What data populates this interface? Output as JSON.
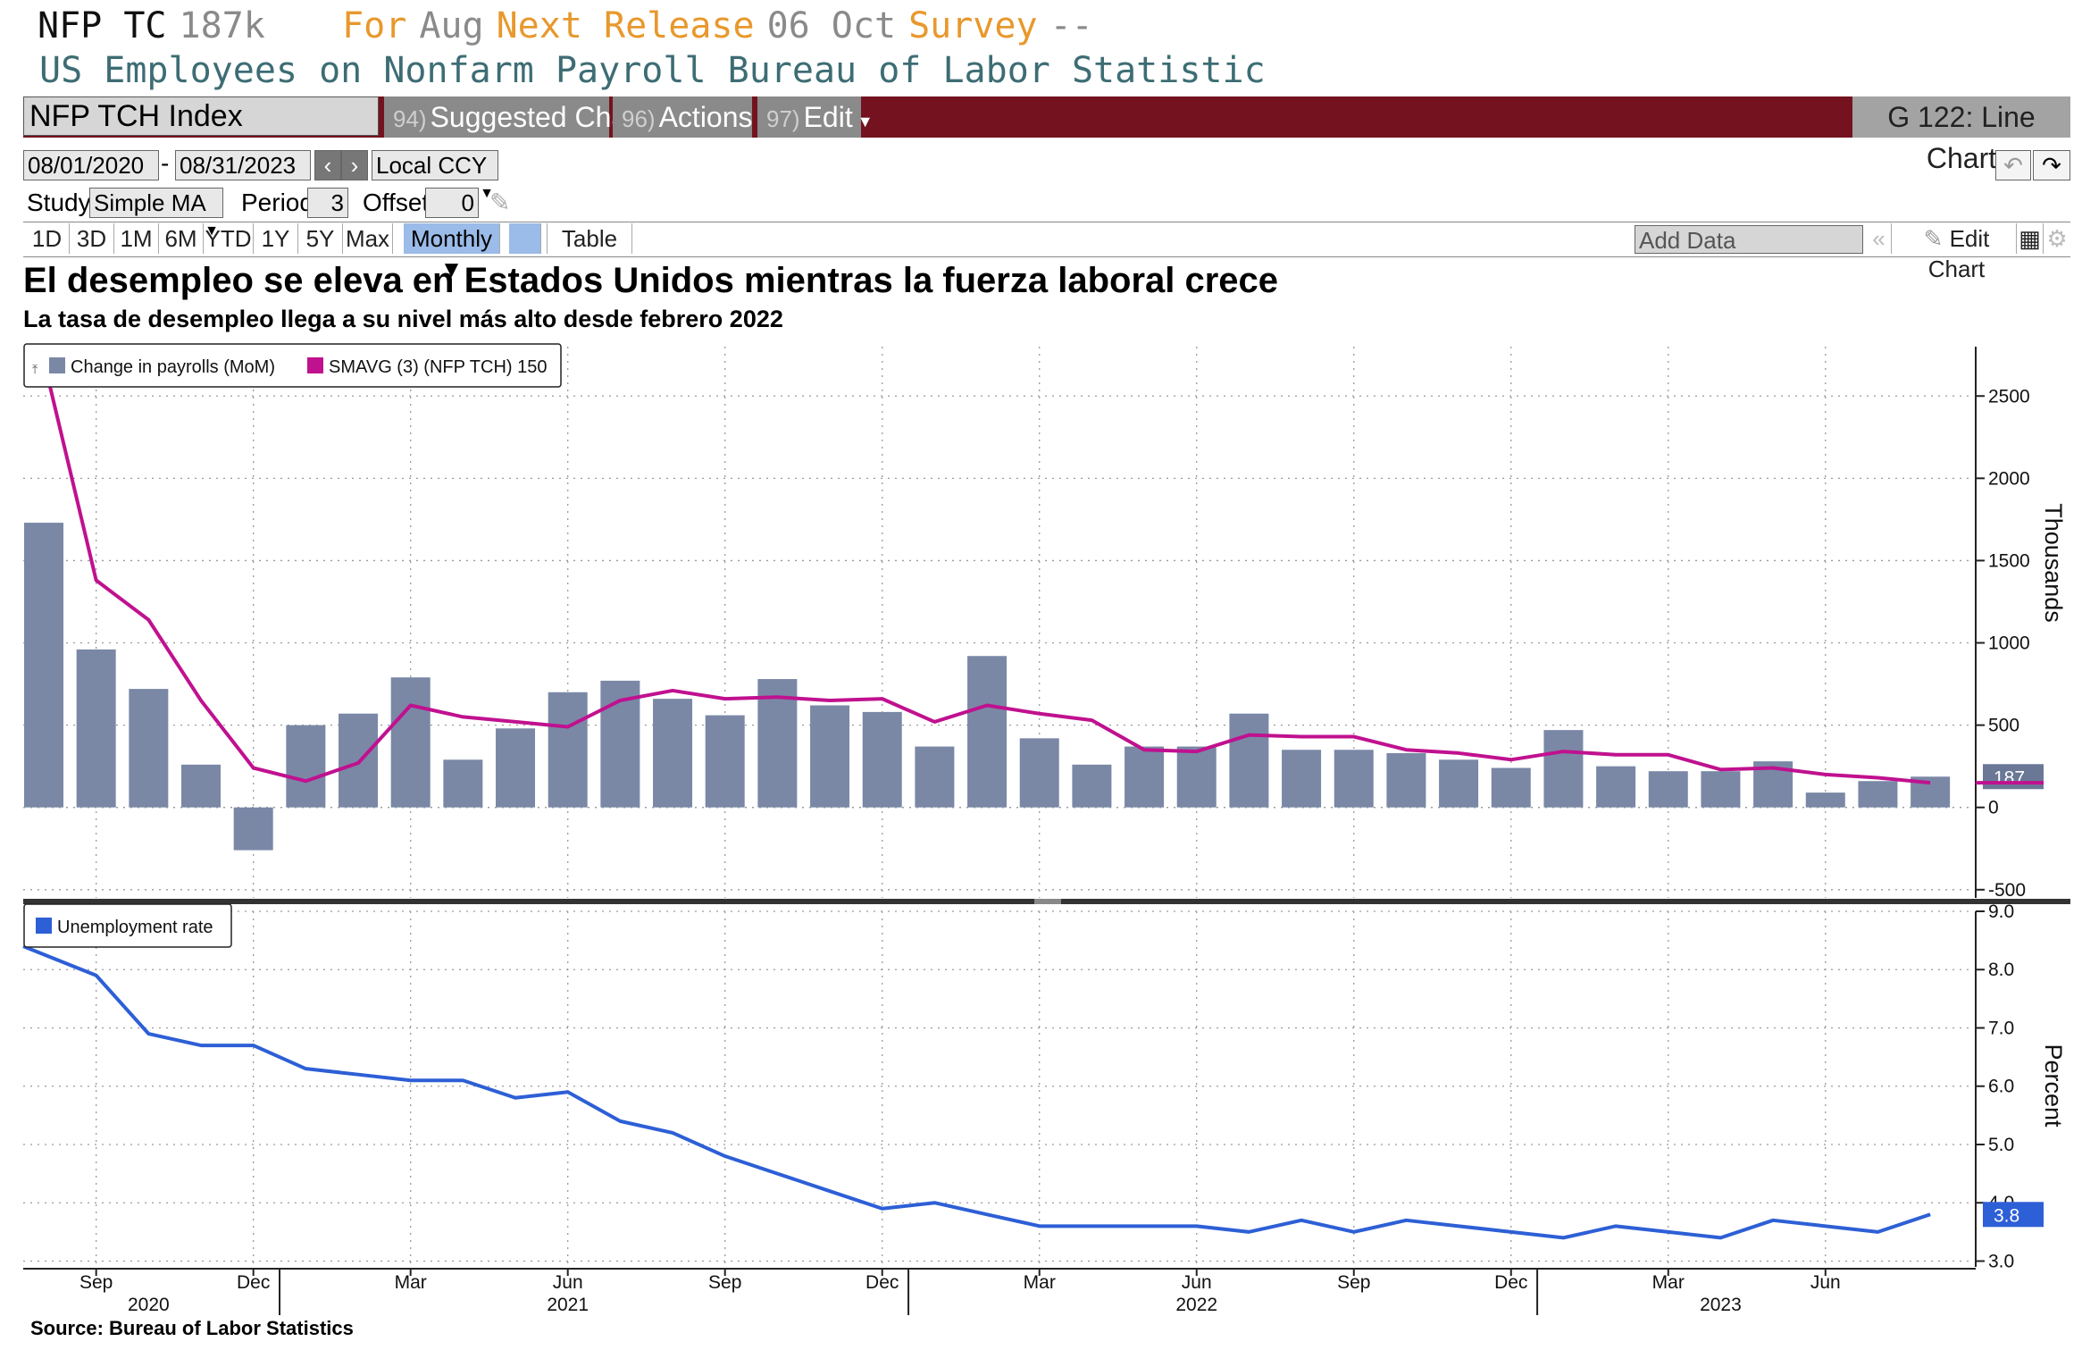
{
  "header": {
    "ticker": "NFP TC",
    "last_value": "187k",
    "for_label": "For",
    "for_value": "Aug",
    "next_release_label": "Next Release",
    "next_release_value": "06 Oct",
    "survey_label": "Survey",
    "survey_value": "--",
    "description": "US Employees on Nonfarm Payroll Bureau of Labor Statistic"
  },
  "command_bar": {
    "security": "NFP TCH Index",
    "suggested_num": "94)",
    "suggested_label": "Suggested Charts",
    "actions_num": "96)",
    "actions_label": "Actions",
    "edit_num": "97)",
    "edit_label": "Edit",
    "chart_name": "G 122: Line Chart"
  },
  "toolbar": {
    "start_date": "08/01/2020",
    "end_date": "08/31/2023",
    "currency": "Local CCY",
    "study_label": "Study",
    "study_value": "Simple MA",
    "period_label": "Period",
    "period_value": "3",
    "offset_label": "Offset",
    "offset_value": "0",
    "ranges": [
      "1D",
      "3D",
      "1M",
      "6M",
      "YTD",
      "1Y",
      "5Y",
      "Max"
    ],
    "frequency": "Monthly",
    "table_label": "Table",
    "add_data_placeholder": "Add Data",
    "edit_chart_label": "Edit Chart"
  },
  "titles": {
    "main": "El desempleo se eleva en Estados Unidos mientras la fuerza laboral crece",
    "sub": "La tasa de desempleo llega a su nivel más alto desde febrero 2022",
    "source": "Source: Bureau of Labor Statistics"
  },
  "colors": {
    "bars": "#7a88a6",
    "smavg": "#c0118f",
    "unemployment": "#2d5fd6",
    "command_bar": "#74131f"
  },
  "chart_data": [
    {
      "type": "bar",
      "x": [
        "2020-08",
        "2020-09",
        "2020-10",
        "2020-11",
        "2020-12",
        "2021-01",
        "2021-02",
        "2021-03",
        "2021-04",
        "2021-05",
        "2021-06",
        "2021-07",
        "2021-08",
        "2021-09",
        "2021-10",
        "2021-11",
        "2021-12",
        "2022-01",
        "2022-02",
        "2022-03",
        "2022-04",
        "2022-05",
        "2022-06",
        "2022-07",
        "2022-08",
        "2022-09",
        "2022-10",
        "2022-11",
        "2022-12",
        "2023-01",
        "2023-02",
        "2023-03",
        "2023-04",
        "2023-05",
        "2023-06",
        "2023-07",
        "2023-08"
      ],
      "series": [
        {
          "name": "Change in payrolls (MoM)",
          "kind": "bar",
          "values": [
            1730,
            960,
            720,
            260,
            -260,
            500,
            570,
            790,
            290,
            480,
            700,
            770,
            660,
            560,
            780,
            620,
            580,
            370,
            920,
            420,
            260,
            370,
            370,
            570,
            350,
            350,
            330,
            290,
            240,
            470,
            250,
            220,
            220,
            280,
            90,
            160,
            187
          ]
        },
        {
          "name": "SMAVG (3) (NFP TCH)",
          "kind": "line",
          "values": [
            2600,
            1380,
            1140,
            650,
            240,
            160,
            270,
            620,
            550,
            520,
            490,
            650,
            710,
            660,
            670,
            650,
            660,
            520,
            620,
            570,
            530,
            350,
            340,
            440,
            430,
            430,
            350,
            330,
            290,
            340,
            320,
            320,
            230,
            240,
            200,
            180,
            150
          ]
        }
      ],
      "legend": [
        "Change in payrolls (MoM)",
        "SMAVG (3) (NFP TCH) 150"
      ],
      "last_label": "187",
      "ylabel": "Thousands",
      "ylim": [
        -550,
        2800
      ],
      "yticks": [
        -500,
        0,
        500,
        1000,
        1500,
        2000,
        2500
      ],
      "grid": true,
      "legend_position": "top-left"
    },
    {
      "type": "line",
      "x": [
        "2020-08",
        "2020-09",
        "2020-10",
        "2020-11",
        "2020-12",
        "2021-01",
        "2021-02",
        "2021-03",
        "2021-04",
        "2021-05",
        "2021-06",
        "2021-07",
        "2021-08",
        "2021-09",
        "2021-10",
        "2021-11",
        "2021-12",
        "2022-01",
        "2022-02",
        "2022-03",
        "2022-04",
        "2022-05",
        "2022-06",
        "2022-07",
        "2022-08",
        "2022-09",
        "2022-10",
        "2022-11",
        "2022-12",
        "2023-01",
        "2023-02",
        "2023-03",
        "2023-04",
        "2023-05",
        "2023-06",
        "2023-07",
        "2023-08"
      ],
      "series": [
        {
          "name": "Unemployment rate",
          "values": [
            8.4,
            7.9,
            6.9,
            6.7,
            6.7,
            6.3,
            6.2,
            6.1,
            6.1,
            5.8,
            5.9,
            5.4,
            5.2,
            4.8,
            4.5,
            4.2,
            3.9,
            4.0,
            3.8,
            3.6,
            3.6,
            3.6,
            3.6,
            3.5,
            3.7,
            3.5,
            3.7,
            3.6,
            3.5,
            3.4,
            3.6,
            3.5,
            3.4,
            3.7,
            3.6,
            3.5,
            3.8
          ]
        }
      ],
      "legend": [
        "Unemployment rate"
      ],
      "last_label": "3.8",
      "ylabel": "Percent",
      "ylim": [
        2.9,
        9.0
      ],
      "yticks": [
        3.0,
        4.0,
        5.0,
        6.0,
        7.0,
        8.0,
        9.0
      ],
      "grid": true,
      "legend_position": "top-left"
    }
  ],
  "x_axis": {
    "month_ticks": [
      {
        "i": 1,
        "label": "Sep"
      },
      {
        "i": 4,
        "label": "Dec"
      },
      {
        "i": 7,
        "label": "Mar"
      },
      {
        "i": 10,
        "label": "Jun"
      },
      {
        "i": 13,
        "label": "Sep"
      },
      {
        "i": 16,
        "label": "Dec"
      },
      {
        "i": 19,
        "label": "Mar"
      },
      {
        "i": 22,
        "label": "Jun"
      },
      {
        "i": 25,
        "label": "Sep"
      },
      {
        "i": 28,
        "label": "Dec"
      },
      {
        "i": 31,
        "label": "Mar"
      },
      {
        "i": 34,
        "label": "Jun"
      }
    ],
    "years": [
      {
        "i": 2,
        "label": "2020"
      },
      {
        "i": 10,
        "label": "2021"
      },
      {
        "i": 22,
        "label": "2022"
      },
      {
        "i": 32,
        "label": "2023"
      }
    ],
    "year_separators": [
      4.5,
      16.5,
      28.5
    ]
  }
}
